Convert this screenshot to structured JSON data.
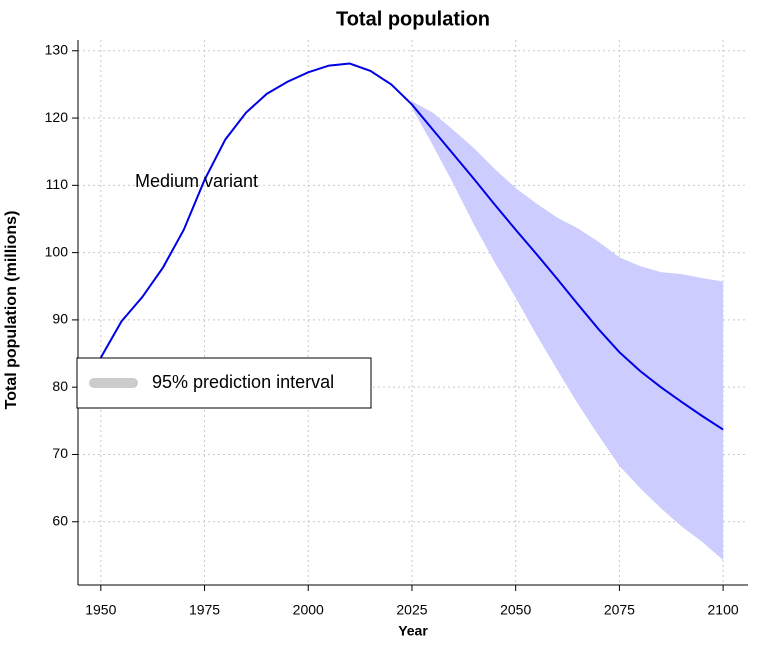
{
  "chart_data": {
    "type": "line",
    "title": "Total population",
    "xlabel": "Year",
    "ylabel": "Total population (millions)",
    "annotation": "Medium variant",
    "xlim": [
      1944.5,
      2106
    ],
    "ylim": [
      50.6,
      131.6
    ],
    "xticks": [
      1950,
      1975,
      2000,
      2025,
      2050,
      2075,
      2100
    ],
    "yticks": [
      60,
      70,
      80,
      90,
      100,
      110,
      120,
      130
    ],
    "grid": true,
    "legend": "left",
    "x": [
      1950,
      1955,
      1960,
      1965,
      1970,
      1975,
      1980,
      1985,
      1990,
      1995,
      2000,
      2005,
      2010,
      2015,
      2020,
      2025,
      2030,
      2035,
      2040,
      2045,
      2050,
      2055,
      2060,
      2065,
      2070,
      2075,
      2080,
      2085,
      2090,
      2095,
      2100
    ],
    "series": [
      {
        "color": "#0000e6",
        "values": [
          84.4,
          89.8,
          93.4,
          97.8,
          103.4,
          110.8,
          116.8,
          120.8,
          123.6,
          125.4,
          126.8,
          127.8,
          128.1,
          127.0,
          125.0,
          122.0,
          118.3,
          114.6,
          110.9,
          107.1,
          103.4,
          99.8,
          96.1,
          92.3,
          88.6,
          85.2,
          82.4,
          80.0,
          77.8,
          75.7,
          73.7
        ]
      }
    ],
    "band": {
      "name": "95% prediction interval",
      "color": "#ccccff",
      "legend_color": "#cccccc",
      "x": [
        2025,
        2030,
        2035,
        2040,
        2045,
        2050,
        2055,
        2060,
        2065,
        2070,
        2075,
        2080,
        2085,
        2090,
        2095,
        2100
      ],
      "upper": [
        122.5,
        120.8,
        118.2,
        115.5,
        112.4,
        109.6,
        107.3,
        105.2,
        103.6,
        101.6,
        99.3,
        98.0,
        97.1,
        96.8,
        96.2,
        95.7
      ],
      "lower": [
        121.5,
        116.0,
        110.2,
        104.1,
        98.5,
        93.3,
        87.8,
        82.6,
        77.5,
        72.8,
        68.3,
        65.0,
        62.0,
        59.3,
        57.0,
        54.3
      ]
    }
  }
}
